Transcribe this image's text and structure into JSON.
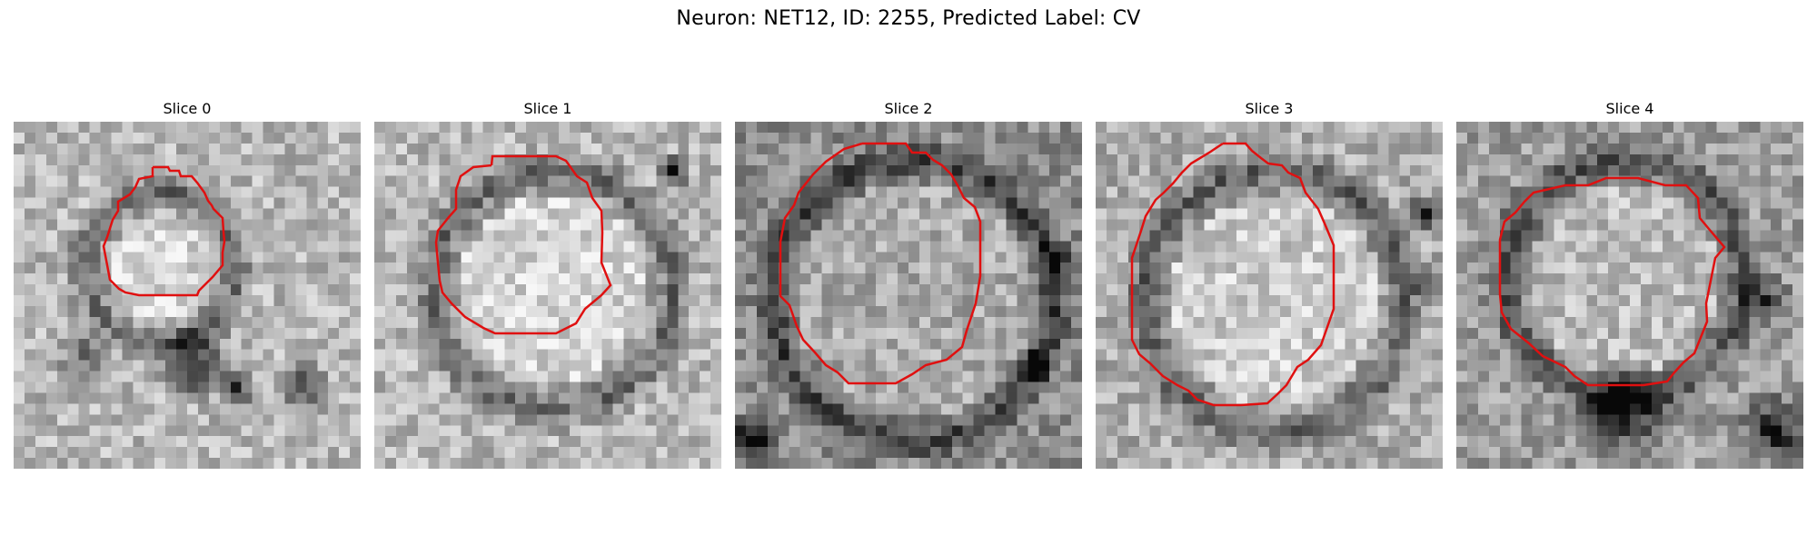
{
  "figure": {
    "title": "Neuron: NET12, ID: 2255, Predicted Label: CV",
    "contour_color": "#e01010"
  },
  "panels": [
    {
      "title": "Slice 0"
    },
    {
      "title": "Slice 1"
    },
    {
      "title": "Slice 2"
    },
    {
      "title": "Slice 3"
    },
    {
      "title": "Slice 4"
    }
  ]
}
